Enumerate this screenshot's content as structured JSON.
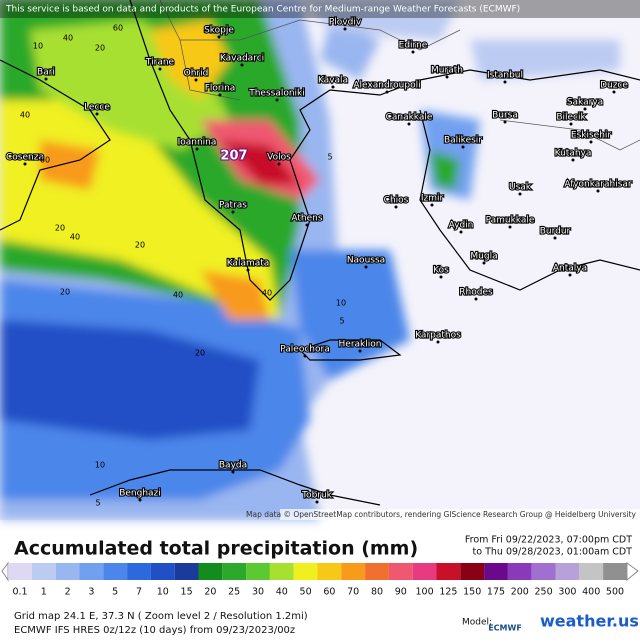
{
  "header": {
    "notice": "This service is based on data and products of the European Centre for Medium-range Weather Forecasts (ECMWF)",
    "attribution": "Map data © OpenStreetMap contributors, rendering GIScience Research Group @ Heidelberg University"
  },
  "map": {
    "cities": [
      "Plovdiv",
      "Edirne",
      "Skopje",
      "Tirane",
      "Kavadarci",
      "Ohrid",
      "Murath",
      "Istanbul",
      "Kavala",
      "Alexandroupoli",
      "Duzce",
      "Florina",
      "Thessaloniki",
      "Bari",
      "Sakarya",
      "Lecce",
      "Bursa",
      "Bilecik",
      "Canakkale",
      "Eskisehir",
      "Balikesir",
      "Kutahya",
      "Ioannina",
      "Volos",
      "Cosenza",
      "Usak",
      "Afyonkarahisar",
      "Chios",
      "Izmir",
      "Patras",
      "Athens",
      "Aydin",
      "Pamukkale",
      "Burdur",
      "Naoussa",
      "Mugla",
      "Kalamata",
      "Kos",
      "Antalya",
      "Rhodes",
      "Karpathos",
      "Paleochora",
      "Heraklion",
      "Bayda",
      "Benghazi",
      "Tobruk"
    ],
    "contour_labels": [
      "60",
      "40",
      "10",
      "20",
      "40",
      "20",
      "40",
      "20",
      "40",
      "60",
      "5",
      "10",
      "20",
      "5",
      "5",
      "10",
      "40",
      "20"
    ],
    "max_label": "207"
  },
  "legend": {
    "title": "Accumulated total precipitation (mm)",
    "period_from": "From Fri 09/22/2023, 07:00pm CDT",
    "period_to": "to Thu 09/28/2023, 01:00am CDT",
    "scale": [
      {
        "value": 0.1,
        "color": "#ded8f2"
      },
      {
        "value": 1,
        "color": "#bccbf2"
      },
      {
        "value": 2,
        "color": "#9ab6f0"
      },
      {
        "value": 3,
        "color": "#72a0f0"
      },
      {
        "value": 5,
        "color": "#4c86ea"
      },
      {
        "value": 7,
        "color": "#2c68de"
      },
      {
        "value": 10,
        "color": "#2050c6"
      },
      {
        "value": 15,
        "color": "#1a3a9c"
      },
      {
        "value": 20,
        "color": "#128c1c"
      },
      {
        "value": 25,
        "color": "#2ca82c"
      },
      {
        "value": 30,
        "color": "#5cc832"
      },
      {
        "value": 40,
        "color": "#a8e032"
      },
      {
        "value": 50,
        "color": "#f0f020"
      },
      {
        "value": 60,
        "color": "#f8c818"
      },
      {
        "value": 70,
        "color": "#f89a1a"
      },
      {
        "value": 80,
        "color": "#f07030"
      },
      {
        "value": 90,
        "color": "#f05870"
      },
      {
        "value": 100,
        "color": "#e83a80"
      },
      {
        "value": 125,
        "color": "#c8102a"
      },
      {
        "value": 150,
        "color": "#8a0014"
      },
      {
        "value": 175,
        "color": "#6a0a8a"
      },
      {
        "value": 200,
        "color": "#8a3ab8"
      },
      {
        "value": 250,
        "color": "#a070d0"
      },
      {
        "value": 300,
        "color": "#b8a0d8"
      },
      {
        "value": 400,
        "color": "#c4c4c4"
      },
      {
        "value": 500,
        "color": "#909090"
      }
    ]
  },
  "footer": {
    "grid": "Grid map 24.1 E, 37.3 N ( Zoom level 2 / Resolution 1.2mi)",
    "run": "ECMWF IFS HRES 0z/12z (10 days) from 09/23/2023/00z",
    "model_label": "Model:",
    "ecmwf": "ECMWF",
    "brand": "weather.us"
  }
}
